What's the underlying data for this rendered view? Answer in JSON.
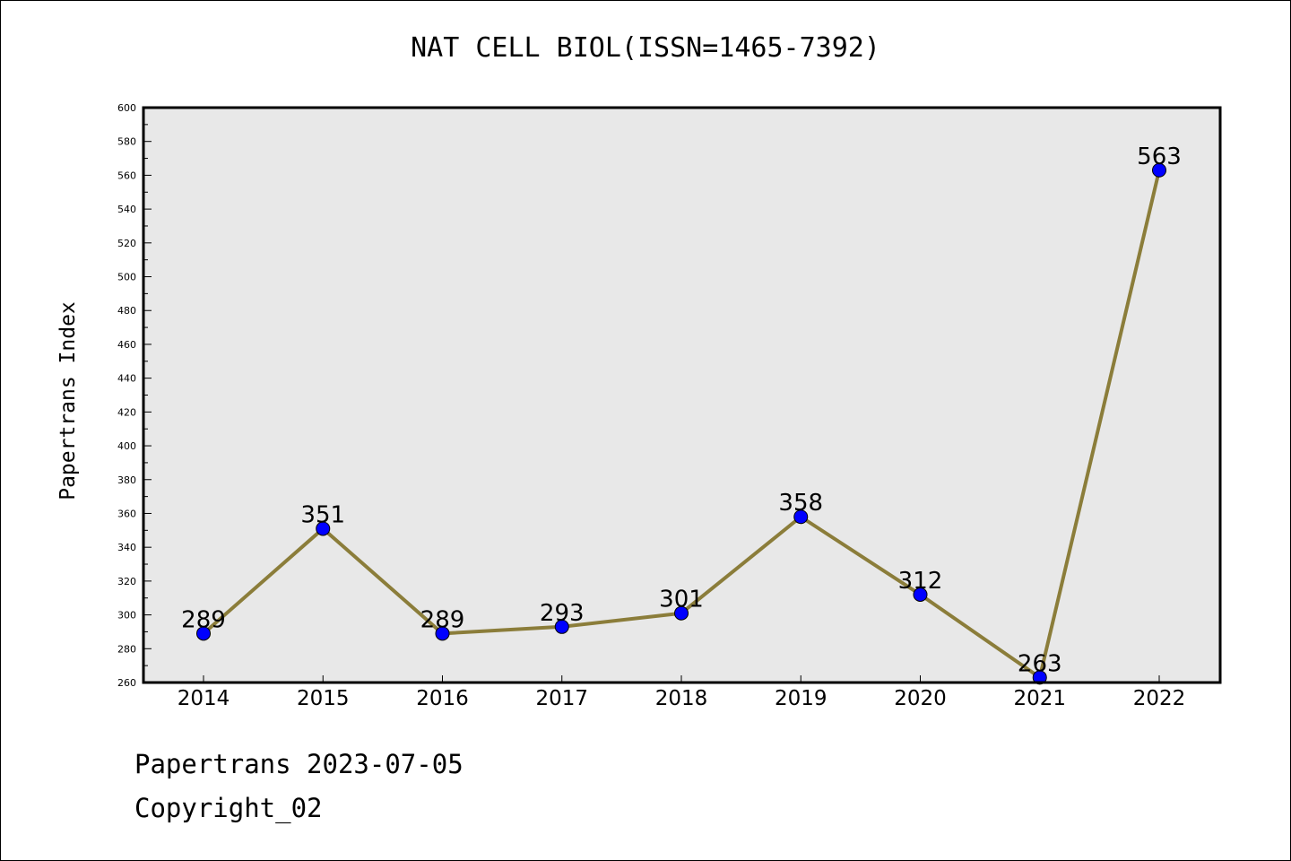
{
  "header": {
    "title": "NAT CELL BIOL(ISSN=1465-7392)"
  },
  "footer": {
    "line1": "Papertrans 2023-07-05",
    "line2": "Copyright_02"
  },
  "chart_data": {
    "type": "line",
    "title": "NAT CELL BIOL(ISSN=1465-7392)",
    "xlabel": "",
    "ylabel": "Papertrans Index",
    "categories": [
      "2014",
      "2015",
      "2016",
      "2017",
      "2018",
      "2019",
      "2020",
      "2021",
      "2022"
    ],
    "series": [
      {
        "values": [
          289,
          351,
          289,
          293,
          301,
          358,
          312,
          263,
          563
        ]
      }
    ],
    "data_labels": [
      "289",
      "351",
      "289",
      "293",
      "301",
      "358",
      "312",
      "263",
      "563"
    ],
    "ylim": [
      260,
      600
    ],
    "yticks": [
      260,
      280,
      300,
      320,
      340,
      360,
      380,
      400,
      420,
      440,
      460,
      480,
      500,
      520,
      540,
      560,
      580,
      600
    ],
    "grid": false,
    "legend": "none",
    "colors": {
      "line": "#8b7d3a",
      "marker": "#0000ff",
      "plot_bg": "#e8e8e8"
    }
  }
}
